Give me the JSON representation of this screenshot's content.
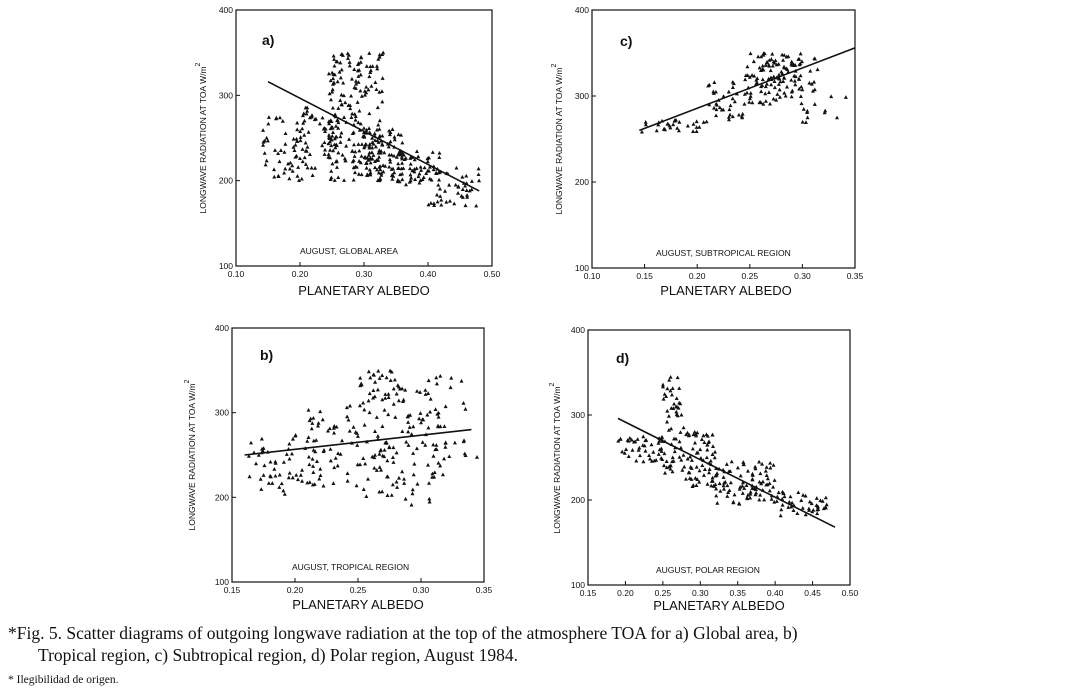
{
  "figure": {
    "caption_line1": "*Fig. 5. Scatter diagrams of outgoing longwave radiation at the top of the atmosphere TOA for a) Global area, b)",
    "caption_line2": "Tropical region, c) Subtropical region, d) Polar region, August 1984.",
    "footnote": "* Ilegibilidad de origen."
  },
  "colors": {
    "ink": "#111111",
    "background": "#ffffff"
  },
  "chart_data": [
    {
      "id": "a",
      "type": "scatter",
      "panel_label": "a)",
      "title": "AUGUST, GLOBAL AREA",
      "xlabel": "PLANETARY ALBEDO",
      "ylabel": "LONGWAVE RADIATION AT TOA W/m",
      "ylabel_sup": "2",
      "xlim": [
        0.1,
        0.5
      ],
      "ylim": [
        100,
        400
      ],
      "xticks": [
        0.1,
        0.2,
        0.3,
        0.4,
        0.5
      ],
      "xticklabels": [
        "0.10",
        "0.20",
        "0.30",
        "0.40",
        "0.50"
      ],
      "yticks": [
        100,
        200,
        300,
        400
      ],
      "yticklabels": [
        "100",
        "200",
        "300",
        "400"
      ],
      "regression": {
        "x": [
          0.15,
          0.48
        ],
        "y": [
          316,
          188
        ]
      },
      "clusters": [
        {
          "x": [
            0.14,
            0.22
          ],
          "y": [
            200,
            275
          ],
          "n": 60
        },
        {
          "x": [
            0.2,
            0.26
          ],
          "y": [
            210,
            290
          ],
          "n": 55
        },
        {
          "x": [
            0.245,
            0.33
          ],
          "y": [
            200,
            350
          ],
          "n": 200
        },
        {
          "x": [
            0.3,
            0.36
          ],
          "y": [
            200,
            260
          ],
          "n": 70
        },
        {
          "x": [
            0.34,
            0.42
          ],
          "y": [
            195,
            235
          ],
          "n": 70
        },
        {
          "x": [
            0.4,
            0.48
          ],
          "y": [
            170,
            215
          ],
          "n": 45
        }
      ]
    },
    {
      "id": "c",
      "type": "scatter",
      "panel_label": "c)",
      "title": "AUGUST, SUBTROPICAL REGION",
      "xlabel": "PLANETARY ALBEDO",
      "ylabel": "LONGWAVE RADIATION AT TOA W/m",
      "ylabel_sup": "2",
      "xlim": [
        0.1,
        0.35
      ],
      "ylim": [
        100,
        400
      ],
      "xticks": [
        0.1,
        0.15,
        0.2,
        0.25,
        0.3,
        0.35
      ],
      "xticklabels": [
        "0.10",
        "0.15",
        "0.20",
        "0.25",
        "0.30",
        "0.35"
      ],
      "yticks": [
        100,
        200,
        300,
        400
      ],
      "yticklabels": [
        "100",
        "200",
        "300",
        "400"
      ],
      "regression": {
        "x": [
          0.145,
          0.35
        ],
        "y": [
          260,
          356
        ]
      },
      "clusters": [
        {
          "x": [
            0.145,
            0.21
          ],
          "y": [
            258,
            272
          ],
          "n": 30
        },
        {
          "x": [
            0.21,
            0.245
          ],
          "y": [
            270,
            320
          ],
          "n": 35
        },
        {
          "x": [
            0.245,
            0.3
          ],
          "y": [
            290,
            350
          ],
          "n": 110
        },
        {
          "x": [
            0.27,
            0.315
          ],
          "y": [
            300,
            345
          ],
          "n": 25
        },
        {
          "x": [
            0.3,
            0.35
          ],
          "y": [
            235,
            300
          ],
          "n": 12
        }
      ]
    },
    {
      "id": "b",
      "type": "scatter",
      "panel_label": "b)",
      "title": "AUGUST, TROPICAL REGION",
      "xlabel": "PLANETARY ALBEDO",
      "ylabel": "LONGWAVE RADIATION AT TOA W/m",
      "ylabel_sup": "2",
      "xlim": [
        0.15,
        0.35
      ],
      "ylim": [
        100,
        400
      ],
      "xticks": [
        0.15,
        0.2,
        0.25,
        0.3,
        0.35
      ],
      "xticklabels": [
        "0.15",
        "0.20",
        "0.25",
        "0.30",
        "0.35"
      ],
      "yticks": [
        100,
        200,
        300,
        400
      ],
      "yticklabels": [
        "100",
        "200",
        "300",
        "400"
      ],
      "regression": {
        "x": [
          0.16,
          0.34
        ],
        "y": [
          250,
          280
        ]
      },
      "clusters": [
        {
          "x": [
            0.16,
            0.21
          ],
          "y": [
            200,
            275
          ],
          "n": 50
        },
        {
          "x": [
            0.21,
            0.25
          ],
          "y": [
            210,
            310
          ],
          "n": 60
        },
        {
          "x": [
            0.25,
            0.28
          ],
          "y": [
            200,
            350
          ],
          "n": 80
        },
        {
          "x": [
            0.28,
            0.32
          ],
          "y": [
            190,
            345
          ],
          "n": 80
        },
        {
          "x": [
            0.31,
            0.345
          ],
          "y": [
            225,
            345
          ],
          "n": 18
        }
      ]
    },
    {
      "id": "d",
      "type": "scatter",
      "panel_label": "d)",
      "title": "AUGUST, POLAR REGION",
      "xlabel": "PLANETARY ALBEDO",
      "ylabel": "LONGWAVE RADIATION AT TOA W/m",
      "ylabel_sup": "2",
      "xlim": [
        0.15,
        0.5
      ],
      "ylim": [
        100,
        400
      ],
      "xticks": [
        0.15,
        0.2,
        0.25,
        0.3,
        0.35,
        0.4,
        0.45,
        0.5
      ],
      "xticklabels": [
        "0.15",
        "0.20",
        "0.25",
        "0.30",
        "0.35",
        "0.40",
        "0.45",
        "0.50"
      ],
      "yticks": [
        100,
        200,
        300,
        400
      ],
      "yticklabels": [
        "100",
        "200",
        "300",
        "400"
      ],
      "regression": {
        "x": [
          0.19,
          0.48
        ],
        "y": [
          296,
          168
        ]
      },
      "clusters": [
        {
          "x": [
            0.19,
            0.25
          ],
          "y": [
            245,
            275
          ],
          "n": 45
        },
        {
          "x": [
            0.25,
            0.275
          ],
          "y": [
            230,
            345
          ],
          "n": 55
        },
        {
          "x": [
            0.275,
            0.32
          ],
          "y": [
            215,
            285
          ],
          "n": 70
        },
        {
          "x": [
            0.32,
            0.4
          ],
          "y": [
            195,
            245
          ],
          "n": 90
        },
        {
          "x": [
            0.4,
            0.47
          ],
          "y": [
            180,
            210
          ],
          "n": 45
        }
      ]
    }
  ]
}
